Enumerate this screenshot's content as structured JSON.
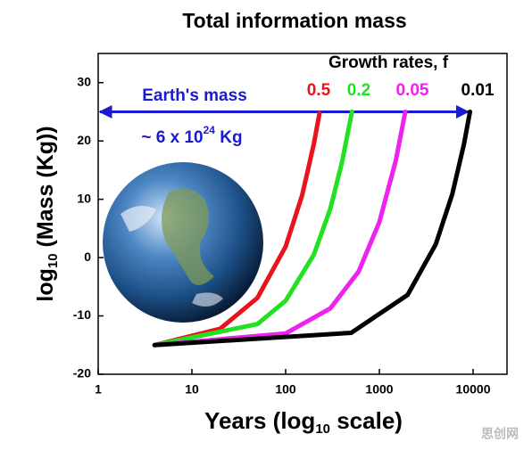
{
  "chart_data": {
    "type": "line",
    "title": "Total information mass",
    "x_label": [
      "Years (log",
      "10",
      " scale)"
    ],
    "y_label": [
      "log",
      "10",
      " (Mass (Kg))"
    ],
    "legend_title": "Growth rates, f",
    "x_scale": "log",
    "xlim": [
      1,
      23000
    ],
    "xticks": [
      1,
      10,
      100,
      1000,
      10000
    ],
    "ylim": [
      -20,
      35
    ],
    "yticks": [
      -20,
      -10,
      0,
      10,
      20,
      30
    ],
    "annotations": {
      "earth_label": "Earth's mass",
      "earth_mass": [
        "~ 6 x 10",
        "24",
        " Kg"
      ],
      "arrow_y": 25
    },
    "watermark": "思创网",
    "series": [
      {
        "name": "0.5",
        "color": "#e8141c",
        "x": [
          4,
          20,
          50,
          100,
          150,
          200,
          230
        ],
        "values": [
          -15,
          -12.2,
          -6.9,
          1.9,
          10.7,
          19.5,
          24.8
        ]
      },
      {
        "name": "0.2",
        "color": "#22e022",
        "x": [
          4,
          50,
          100,
          200,
          300,
          400,
          510
        ],
        "values": [
          -15,
          -11.4,
          -7.4,
          0.5,
          8.4,
          16.4,
          25
        ]
      },
      {
        "name": "0.05",
        "color": "#ee22ee",
        "x": [
          4,
          100,
          300,
          600,
          1000,
          1500,
          1890
        ],
        "values": [
          -15,
          -13,
          -8.7,
          -2.4,
          6.1,
          16.7,
          25
        ]
      },
      {
        "name": "0.01",
        "color": "#000000",
        "x": [
          4,
          500,
          2000,
          4000,
          6000,
          8000,
          9260
        ],
        "values": [
          -15,
          -12.9,
          -6.4,
          2.3,
          10.9,
          19.5,
          25
        ]
      }
    ]
  }
}
